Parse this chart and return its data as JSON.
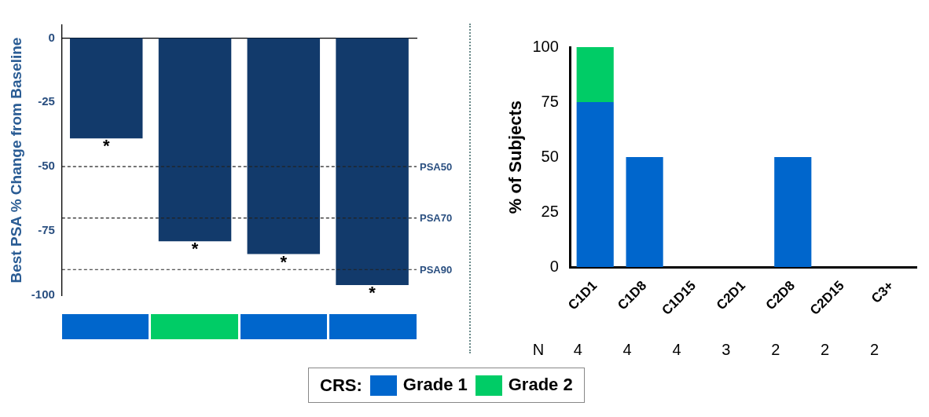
{
  "chart_data": [
    {
      "type": "bar",
      "categories": [
        null,
        null,
        null,
        null
      ],
      "values": [
        -39,
        -79,
        -84,
        -96
      ],
      "color": "#123a6b",
      "ylabel": "Best PSA % Change from Baseline",
      "ylim": [
        -100,
        5
      ],
      "yticks": [
        0,
        -25,
        -50,
        -75,
        -100
      ],
      "tick_labels": "y",
      "grid": false,
      "value_labels": [
        "*",
        "*",
        "*",
        "*"
      ],
      "ref_lines": [
        {
          "axis": "y",
          "value": -50,
          "label": "PSA50",
          "line_style": "dashed"
        },
        {
          "axis": "y",
          "value": -70,
          "label": "PSA70",
          "line_style": "dashed"
        },
        {
          "axis": "y",
          "value": -90,
          "label": "PSA90",
          "line_style": "dashed"
        }
      ]
    },
    {
      "type": "bar",
      "stacked": true,
      "categories": [
        "C1D1",
        "C1D8",
        "C1D15",
        "C2D1",
        "C2D8",
        "C2D15",
        "C3+"
      ],
      "series": [
        {
          "name": "Grade 1",
          "color": "#0066cc",
          "values": [
            75,
            50,
            0,
            0,
            50,
            0,
            0
          ]
        },
        {
          "name": "Grade 2",
          "color": "#00cc66",
          "values": [
            25,
            0,
            0,
            0,
            0,
            0,
            0
          ]
        }
      ],
      "ylabel": "% of Subjects",
      "ylim": [
        0,
        100
      ],
      "yticks": [
        0,
        25,
        50,
        75,
        100
      ],
      "grid": false,
      "legend": "bottom",
      "legend_title": "CRS:",
      "annotations": [
        "N",
        "4",
        "4",
        "4",
        "3",
        "2",
        "2",
        "2"
      ]
    }
  ]
}
